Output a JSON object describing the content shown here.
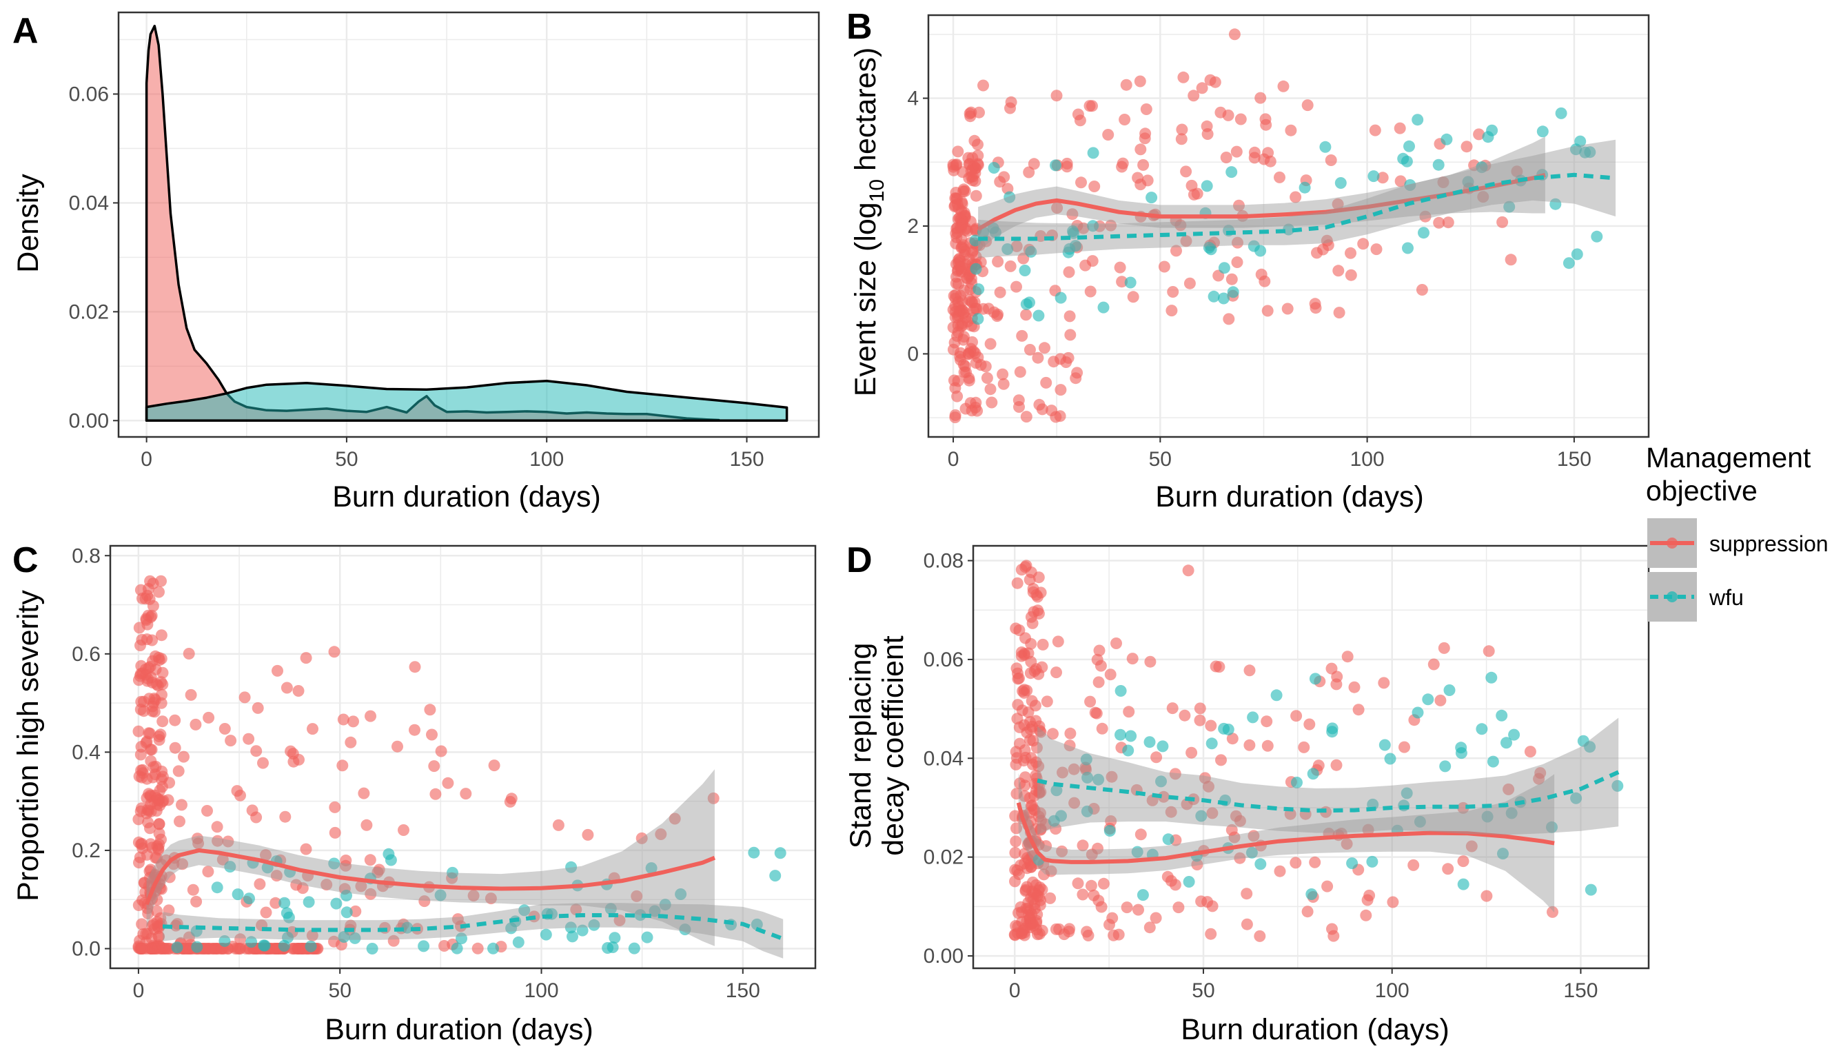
{
  "colors": {
    "suppression": "#F0615B",
    "wfu": "#1FB8B6",
    "ribbon": "#999999",
    "grid": "#EBEBEB"
  },
  "legend": {
    "title_line1": "Management",
    "title_line2": "objective",
    "items": [
      "suppression",
      "wfu"
    ]
  },
  "chart_data": [
    {
      "panel": "A",
      "type": "area",
      "xlabel": "Burn duration (days)",
      "ylabel": "Density",
      "xlim": [
        -7,
        168
      ],
      "ylim": [
        -0.003,
        0.075
      ],
      "xticks": [
        0,
        50,
        100,
        150
      ],
      "yticks": [
        0.0,
        0.02,
        0.04,
        0.06
      ],
      "ytick_labels": [
        "0.00",
        "0.02",
        "0.04",
        "0.06"
      ],
      "grid": true,
      "series": [
        {
          "name": "suppression",
          "x": [
            0,
            0.5,
            1,
            2,
            3,
            4,
            5,
            6,
            8,
            10,
            12,
            15,
            18,
            20,
            22,
            25,
            30,
            35,
            40,
            45,
            50,
            55,
            60,
            65,
            68,
            70,
            72,
            75,
            80,
            85,
            90,
            95,
            100,
            105,
            110,
            115,
            120,
            125,
            130,
            135,
            140,
            143
          ],
          "y": [
            0.062,
            0.068,
            0.071,
            0.0725,
            0.069,
            0.06,
            0.049,
            0.038,
            0.025,
            0.017,
            0.013,
            0.0105,
            0.0075,
            0.005,
            0.0035,
            0.0025,
            0.0019,
            0.0018,
            0.002,
            0.0022,
            0.0018,
            0.0016,
            0.0025,
            0.0015,
            0.0035,
            0.0045,
            0.0028,
            0.0016,
            0.0017,
            0.0015,
            0.0016,
            0.0017,
            0.0016,
            0.0013,
            0.0015,
            0.0013,
            0.0012,
            0.0012,
            0.0008,
            0.0004,
            0.0002,
            0.0001
          ]
        },
        {
          "name": "wfu",
          "x": [
            0,
            5,
            10,
            15,
            20,
            25,
            30,
            40,
            50,
            60,
            70,
            80,
            90,
            100,
            110,
            120,
            130,
            140,
            150,
            160
          ],
          "y": [
            0.0025,
            0.0031,
            0.0036,
            0.0042,
            0.005,
            0.006,
            0.0066,
            0.0069,
            0.0064,
            0.0058,
            0.0057,
            0.0061,
            0.0069,
            0.0073,
            0.0065,
            0.0053,
            0.0046,
            0.0039,
            0.0032,
            0.0024
          ]
        }
      ]
    },
    {
      "panel": "B",
      "type": "scatter",
      "xlabel": "Burn duration (days)",
      "ylabel_main": "Event size (log",
      "ylabel_sub": "10",
      "ylabel_tail": " hectares)",
      "xlim": [
        -6,
        168
      ],
      "ylim": [
        -1.3,
        5.3
      ],
      "xticks": [
        0,
        50,
        100,
        150
      ],
      "yticks": [
        0,
        2,
        4
      ],
      "ytick_labels": [
        "0",
        "2",
        "4"
      ],
      "grid": true,
      "series": [
        {
          "name": "suppression",
          "smooth": {
            "x": [
              6,
              10,
              15,
              20,
              25,
              30,
              40,
              50,
              60,
              70,
              80,
              90,
              100,
              110,
              120,
              130,
              140,
              143
            ],
            "y": [
              1.95,
              2.1,
              2.25,
              2.35,
              2.4,
              2.35,
              2.22,
              2.15,
              2.15,
              2.15,
              2.18,
              2.22,
              2.3,
              2.4,
              2.5,
              2.62,
              2.75,
              2.8
            ],
            "ci": [
              0.35,
              0.28,
              0.25,
              0.22,
              0.22,
              0.2,
              0.18,
              0.18,
              0.18,
              0.18,
              0.18,
              0.2,
              0.22,
              0.25,
              0.3,
              0.4,
              0.55,
              0.6
            ]
          }
        },
        {
          "name": "wfu",
          "smooth": {
            "x": [
              6,
              10,
              20,
              30,
              40,
              50,
              60,
              70,
              80,
              90,
              100,
              110,
              120,
              130,
              140,
              150,
              160
            ],
            "y": [
              1.8,
              1.8,
              1.8,
              1.82,
              1.84,
              1.86,
              1.88,
              1.9,
              1.92,
              1.98,
              2.15,
              2.35,
              2.5,
              2.65,
              2.75,
              2.8,
              2.75
            ],
            "ci": [
              0.3,
              0.28,
              0.25,
              0.22,
              0.2,
              0.2,
              0.2,
              0.2,
              0.22,
              0.25,
              0.28,
              0.3,
              0.3,
              0.32,
              0.35,
              0.45,
              0.6
            ]
          }
        }
      ]
    },
    {
      "panel": "C",
      "type": "scatter",
      "xlabel": "Burn duration (days)",
      "ylabel": "Proportion high severity",
      "xlim": [
        -7,
        168
      ],
      "ylim": [
        -0.04,
        0.82
      ],
      "xticks": [
        0,
        50,
        100,
        150
      ],
      "yticks": [
        0.0,
        0.2,
        0.4,
        0.6,
        0.8
      ],
      "ytick_labels": [
        "0.0",
        "0.2",
        "0.4",
        "0.6",
        "0.8"
      ],
      "grid": true,
      "series": [
        {
          "name": "suppression",
          "smooth": {
            "x": [
              2,
              4,
              6,
              8,
              10,
              15,
              20,
              30,
              40,
              50,
              60,
              70,
              80,
              90,
              100,
              110,
              120,
              130,
              140,
              143
            ],
            "y": [
              0.09,
              0.13,
              0.16,
              0.18,
              0.19,
              0.2,
              0.195,
              0.18,
              0.16,
              0.145,
              0.135,
              0.128,
              0.124,
              0.122,
              0.123,
              0.128,
              0.138,
              0.155,
              0.175,
              0.185
            ],
            "ci": [
              0.05,
              0.04,
              0.035,
              0.032,
              0.03,
              0.03,
              0.03,
              0.03,
              0.03,
              0.03,
              0.03,
              0.03,
              0.03,
              0.03,
              0.035,
              0.04,
              0.06,
              0.1,
              0.16,
              0.18
            ]
          }
        },
        {
          "name": "wfu",
          "smooth": {
            "x": [
              6,
              10,
              20,
              30,
              40,
              50,
              60,
              70,
              80,
              90,
              100,
              110,
              120,
              130,
              140,
              150,
              155,
              160
            ],
            "y": [
              0.045,
              0.044,
              0.042,
              0.04,
              0.038,
              0.038,
              0.038,
              0.04,
              0.045,
              0.055,
              0.065,
              0.068,
              0.068,
              0.066,
              0.06,
              0.05,
              0.035,
              0.02
            ],
            "ci": [
              0.03,
              0.025,
              0.02,
              0.02,
              0.02,
              0.02,
              0.02,
              0.02,
              0.02,
              0.022,
              0.025,
              0.025,
              0.025,
              0.025,
              0.03,
              0.035,
              0.04,
              0.04
            ]
          }
        }
      ]
    },
    {
      "panel": "D",
      "type": "scatter",
      "xlabel": "Burn duration (days)",
      "ylabel_line1": "Stand replacing",
      "ylabel_line2": "decay coefficient",
      "xlim": [
        -11,
        168
      ],
      "ylim": [
        -0.0025,
        0.083
      ],
      "xticks": [
        0,
        50,
        100,
        150
      ],
      "yticks": [
        0.0,
        0.02,
        0.04,
        0.06,
        0.08
      ],
      "ytick_labels": [
        "0.00",
        "0.02",
        "0.04",
        "0.06",
        "0.08"
      ],
      "grid": true,
      "series": [
        {
          "name": "suppression",
          "smooth": {
            "x": [
              1,
              2,
              4,
              6,
              8,
              10,
              15,
              20,
              30,
              40,
              50,
              60,
              70,
              80,
              90,
              100,
              110,
              120,
              130,
              140,
              143
            ],
            "y": [
              0.031,
              0.028,
              0.024,
              0.021,
              0.0195,
              0.0192,
              0.019,
              0.019,
              0.0192,
              0.0198,
              0.021,
              0.0222,
              0.0232,
              0.0238,
              0.0243,
              0.0246,
              0.0249,
              0.0248,
              0.0242,
              0.0232,
              0.0228
            ],
            "ci": [
              0.006,
              0.005,
              0.004,
              0.003,
              0.003,
              0.0028,
              0.0025,
              0.0025,
              0.0025,
              0.0025,
              0.0025,
              0.0025,
              0.0028,
              0.003,
              0.0033,
              0.0035,
              0.0038,
              0.0045,
              0.007,
              0.012,
              0.014
            ]
          }
        },
        {
          "name": "wfu",
          "smooth": {
            "x": [
              6,
              10,
              20,
              30,
              40,
              50,
              60,
              70,
              80,
              90,
              100,
              110,
              120,
              130,
              140,
              150,
              160
            ],
            "y": [
              0.0355,
              0.0348,
              0.034,
              0.0332,
              0.0322,
              0.0315,
              0.0305,
              0.0298,
              0.0294,
              0.0295,
              0.03,
              0.0302,
              0.0302,
              0.0305,
              0.0318,
              0.0338,
              0.0372
            ],
            "ci": [
              0.011,
              0.009,
              0.007,
              0.006,
              0.005,
              0.005,
              0.0045,
              0.0045,
              0.0045,
              0.0045,
              0.0045,
              0.005,
              0.0055,
              0.006,
              0.007,
              0.0085,
              0.011
            ]
          }
        }
      ]
    }
  ],
  "panel_tags": [
    "A",
    "B",
    "C",
    "D"
  ]
}
